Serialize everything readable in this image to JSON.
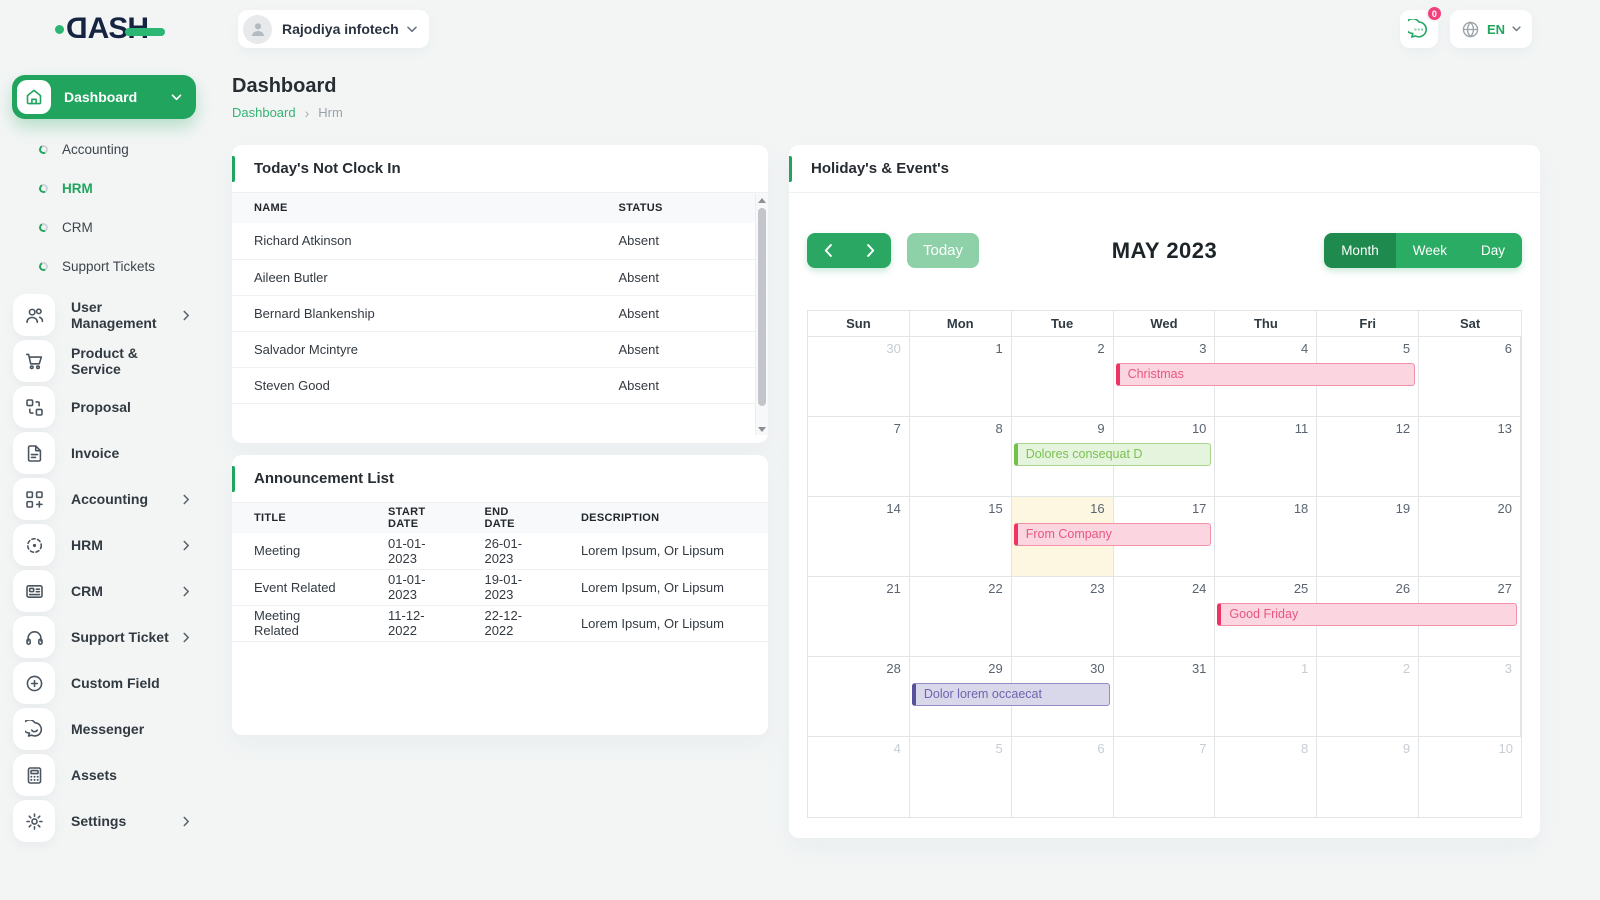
{
  "app": {
    "logo": {
      "d": "D",
      "rest": "ASH"
    }
  },
  "topbar": {
    "workspace_label": "Rajodiya infotech",
    "chat_badge_count": "0",
    "language_code": "EN"
  },
  "page": {
    "title": "Dashboard",
    "breadcrumb_root": "Dashboard",
    "breadcrumb_sep": "›",
    "breadcrumb_current": "Hrm"
  },
  "sidebar": {
    "dashboard_label": "Dashboard",
    "submenu": [
      {
        "label": "Accounting",
        "active": false
      },
      {
        "label": "HRM",
        "active": true
      },
      {
        "label": "CRM",
        "active": false
      },
      {
        "label": "Support Tickets",
        "active": false
      }
    ],
    "items": [
      {
        "label": "User Management",
        "icon": "users-icon",
        "chevron": true
      },
      {
        "label": "Product & Service",
        "icon": "cart-icon",
        "chevron": false
      },
      {
        "label": "Proposal",
        "icon": "proposal-icon",
        "chevron": false
      },
      {
        "label": "Invoice",
        "icon": "invoice-icon",
        "chevron": false
      },
      {
        "label": "Accounting",
        "icon": "accounting-grid-icon",
        "chevron": true
      },
      {
        "label": "HRM",
        "icon": "hrm-circle-icon",
        "chevron": true
      },
      {
        "label": "CRM",
        "icon": "crm-card-icon",
        "chevron": true
      },
      {
        "label": "Support Ticket",
        "icon": "headset-icon",
        "chevron": true
      },
      {
        "label": "Custom Field",
        "icon": "plus-circle-icon",
        "chevron": false
      },
      {
        "label": "Messenger",
        "icon": "chat-bubble-icon",
        "chevron": false
      },
      {
        "label": "Assets",
        "icon": "calculator-icon",
        "chevron": false
      },
      {
        "label": "Settings",
        "icon": "gear-icon",
        "chevron": true
      }
    ]
  },
  "clockin": {
    "title": "Today's Not Clock In",
    "headers": [
      "NAME",
      "STATUS"
    ],
    "rows": [
      [
        "Richard Atkinson",
        "Absent"
      ],
      [
        "Aileen Butler",
        "Absent"
      ],
      [
        "Bernard Blankenship",
        "Absent"
      ],
      [
        "Salvador Mcintyre",
        "Absent"
      ],
      [
        "Steven Good",
        "Absent"
      ]
    ]
  },
  "announcements": {
    "title": "Announcement List",
    "headers": [
      "TITLE",
      "START DATE",
      "END DATE",
      "DESCRIPTION"
    ],
    "rows": [
      [
        "Meeting",
        "01-01-2023",
        "26-01-2023",
        "Lorem Ipsum, Or Lipsum"
      ],
      [
        "Event Related",
        "01-01-2023",
        "19-01-2023",
        "Lorem Ipsum, Or Lipsum"
      ],
      [
        "Meeting Related",
        "11-12-2022",
        "22-12-2022",
        "Lorem Ipsum, Or Lipsum"
      ]
    ]
  },
  "calendar": {
    "card_title": "Holiday's & Event's",
    "title": "MAY 2023",
    "today_label": "Today",
    "views": [
      "Month",
      "Week",
      "Day"
    ],
    "active_view": "Month",
    "weekdays": [
      "Sun",
      "Mon",
      "Tue",
      "Wed",
      "Thu",
      "Fri",
      "Sat"
    ],
    "weeks": [
      [
        {
          "n": 30,
          "muted": true
        },
        {
          "n": 1
        },
        {
          "n": 2
        },
        {
          "n": 3
        },
        {
          "n": 4
        },
        {
          "n": 5
        },
        {
          "n": 6
        }
      ],
      [
        {
          "n": 7
        },
        {
          "n": 8
        },
        {
          "n": 9
        },
        {
          "n": 10
        },
        {
          "n": 11
        },
        {
          "n": 12
        },
        {
          "n": 13
        }
      ],
      [
        {
          "n": 14
        },
        {
          "n": 15
        },
        {
          "n": 16,
          "today": true
        },
        {
          "n": 17
        },
        {
          "n": 18
        },
        {
          "n": 19
        },
        {
          "n": 20
        }
      ],
      [
        {
          "n": 21
        },
        {
          "n": 22
        },
        {
          "n": 23
        },
        {
          "n": 24
        },
        {
          "n": 25
        },
        {
          "n": 26
        },
        {
          "n": 27
        }
      ],
      [
        {
          "n": 28
        },
        {
          "n": 29
        },
        {
          "n": 30
        },
        {
          "n": 31
        },
        {
          "n": 1,
          "muted": true
        },
        {
          "n": 2,
          "muted": true
        },
        {
          "n": 3,
          "muted": true
        }
      ],
      [
        {
          "n": 4,
          "muted": true
        },
        {
          "n": 5,
          "muted": true
        },
        {
          "n": 6,
          "muted": true
        },
        {
          "n": 7,
          "muted": true
        },
        {
          "n": 8,
          "muted": true
        },
        {
          "n": 9,
          "muted": true
        },
        {
          "n": 10,
          "muted": true
        }
      ]
    ],
    "events": [
      {
        "label": "Christmas",
        "week": 0,
        "col": 3,
        "span": 3,
        "color": "pink"
      },
      {
        "label": "Dolores consequat D",
        "week": 1,
        "col": 2,
        "span": 2,
        "color": "green"
      },
      {
        "label": "From Company",
        "week": 2,
        "col": 2,
        "span": 2,
        "color": "pink"
      },
      {
        "label": "Good Friday",
        "week": 3,
        "col": 4,
        "span": 3,
        "color": "pink"
      },
      {
        "label": "Dolor lorem occaecat",
        "week": 4,
        "col": 1,
        "span": 2,
        "color": "purple"
      }
    ],
    "event_colors": {
      "pink": {
        "bg": "#fbd5e0",
        "border": "#f590ab",
        "accent": "#ee3365",
        "text": "#e85681"
      },
      "green": {
        "bg": "#e5f4dc",
        "border": "#a8d48b",
        "accent": "#72c046",
        "text": "#7cc154"
      },
      "purple": {
        "bg": "#d9d7ea",
        "border": "#918bc6",
        "accent": "#57509a",
        "text": "#6c66ae"
      }
    },
    "today_bg": "#fdf7e2"
  },
  "colors": {
    "primary_green": "#21a55e",
    "logo_navy": "#152440",
    "logo_green": "#2bb673",
    "badge_pink": "#f0417c",
    "nav_button_green": "#2aa863",
    "today_button_green": "#8ed1a9",
    "active_view_green": "#1e8a4e"
  }
}
